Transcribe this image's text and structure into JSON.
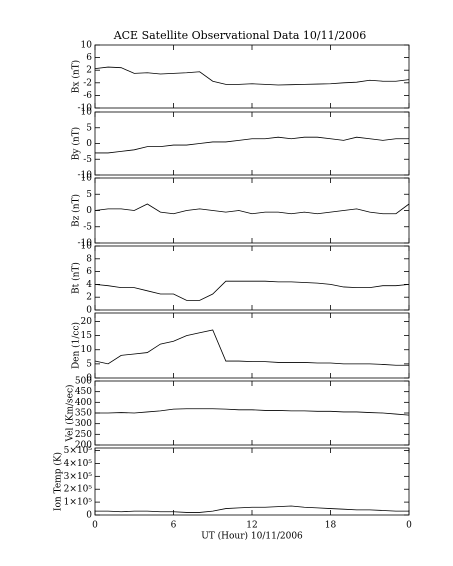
{
  "chart_data": [
    {
      "type": "line",
      "title": "ACE Satellite Observational Data   10/11/2006",
      "ylabel": "Bx (nT)",
      "x": [
        0,
        1,
        2,
        3,
        4,
        5,
        6,
        7,
        8,
        9,
        10,
        11,
        12,
        13,
        14,
        15,
        16,
        17,
        18,
        19,
        20,
        21,
        22,
        23,
        24
      ],
      "series": [
        {
          "color": "#000000",
          "values": [
            2.5,
            3,
            2.8,
            1,
            1.2,
            0.8,
            1,
            1.2,
            1.5,
            -1.5,
            -2.5,
            -2.5,
            -2.3,
            -2.5,
            -2.7,
            -2.6,
            -2.5,
            -2.4,
            -2.3,
            -2,
            -1.8,
            -1.2,
            -1.5,
            -1.5,
            -1
          ]
        }
      ],
      "xlim": [
        0,
        24
      ],
      "ylim": [
        -10,
        10
      ],
      "yticks": [
        -10,
        -6,
        -2,
        2,
        6,
        10
      ]
    },
    {
      "type": "line",
      "ylabel": "By (nT)",
      "x": [
        0,
        1,
        2,
        3,
        4,
        5,
        6,
        7,
        8,
        9,
        10,
        11,
        12,
        13,
        14,
        15,
        16,
        17,
        18,
        19,
        20,
        21,
        22,
        23,
        24
      ],
      "series": [
        {
          "color": "#000000",
          "values": [
            -3,
            -3,
            -2.5,
            -2,
            -1,
            -1,
            -0.5,
            -0.5,
            0,
            0.5,
            0.5,
            1,
            1.5,
            1.5,
            2,
            1.5,
            2,
            2,
            1.5,
            1,
            2,
            1.5,
            1,
            1.5,
            1.5
          ]
        }
      ],
      "xlim": [
        0,
        24
      ],
      "ylim": [
        -10,
        10
      ],
      "yticks": [
        -10,
        -5,
        0,
        5,
        10
      ]
    },
    {
      "type": "line",
      "ylabel": "Bz (nT)",
      "x": [
        0,
        1,
        2,
        3,
        4,
        5,
        6,
        7,
        8,
        9,
        10,
        11,
        12,
        13,
        14,
        15,
        16,
        17,
        18,
        19,
        20,
        21,
        22,
        23,
        24
      ],
      "series": [
        {
          "color": "#000000",
          "values": [
            0,
            0.5,
            0.5,
            0,
            2,
            -0.5,
            -1,
            0,
            0.5,
            0,
            -0.5,
            0,
            -1,
            -0.5,
            -0.5,
            -1,
            -0.5,
            -1,
            -0.5,
            0,
            0.5,
            -0.5,
            -1,
            -1,
            2
          ]
        }
      ],
      "xlim": [
        0,
        24
      ],
      "ylim": [
        -10,
        10
      ],
      "yticks": [
        -10,
        -5,
        0,
        5,
        10
      ]
    },
    {
      "type": "line",
      "ylabel": "Bt (nT)",
      "x": [
        0,
        1,
        2,
        3,
        4,
        5,
        6,
        7,
        8,
        9,
        10,
        11,
        12,
        13,
        14,
        15,
        16,
        17,
        18,
        19,
        20,
        21,
        22,
        23,
        24
      ],
      "series": [
        {
          "color": "#000000",
          "values": [
            4,
            3.8,
            3.5,
            3.5,
            3,
            2.5,
            2.5,
            1.5,
            1.5,
            2.5,
            4.5,
            4.5,
            4.5,
            4.5,
            4.4,
            4.4,
            4.3,
            4.2,
            4,
            3.6,
            3.5,
            3.5,
            3.8,
            3.8,
            4
          ]
        }
      ],
      "xlim": [
        0,
        24
      ],
      "ylim": [
        0,
        10
      ],
      "yticks": [
        0,
        2,
        4,
        6,
        8,
        10
      ]
    },
    {
      "type": "line",
      "ylabel": "Den (1/cc)",
      "x": [
        0,
        1,
        2,
        3,
        4,
        5,
        6,
        7,
        8,
        9,
        10,
        11,
        12,
        13,
        14,
        15,
        16,
        17,
        18,
        19,
        20,
        21,
        22,
        23,
        24
      ],
      "series": [
        {
          "color": "#000000",
          "values": [
            6,
            5,
            8,
            8.5,
            9,
            12,
            13,
            15,
            16,
            17,
            6,
            6,
            5.8,
            5.8,
            5.5,
            5.5,
            5.5,
            5.3,
            5.3,
            5,
            5,
            5,
            4.8,
            4.5,
            4.5
          ]
        }
      ],
      "xlim": [
        0,
        24
      ],
      "ylim": [
        0,
        23
      ],
      "yticks": [
        0,
        5,
        10,
        15,
        20
      ]
    },
    {
      "type": "line",
      "ylabel": "Vel (Km/sec)",
      "x": [
        0,
        1,
        2,
        3,
        4,
        5,
        6,
        7,
        8,
        9,
        10,
        11,
        12,
        13,
        14,
        15,
        16,
        17,
        18,
        19,
        20,
        21,
        22,
        23,
        24
      ],
      "series": [
        {
          "color": "#000000",
          "values": [
            350,
            350,
            352,
            350,
            355,
            360,
            368,
            370,
            370,
            370,
            368,
            365,
            365,
            362,
            362,
            360,
            360,
            358,
            358,
            355,
            355,
            352,
            350,
            345,
            340
          ]
        }
      ],
      "xlim": [
        0,
        24
      ],
      "ylim": [
        200,
        500
      ],
      "yticks": [
        200,
        250,
        300,
        350,
        400,
        450,
        500
      ]
    },
    {
      "type": "line",
      "ylabel": "Ion Temp (K)",
      "xlabel": "UT (Hour)  10/11/2006",
      "x": [
        0,
        1,
        2,
        3,
        4,
        5,
        6,
        7,
        8,
        9,
        10,
        11,
        12,
        13,
        14,
        15,
        16,
        17,
        18,
        19,
        20,
        21,
        22,
        23,
        24
      ],
      "series": [
        {
          "color": "#000000",
          "values": [
            30000,
            30000,
            25000,
            30000,
            30000,
            25000,
            25000,
            20000,
            20000,
            30000,
            50000,
            55000,
            60000,
            60000,
            65000,
            70000,
            60000,
            55000,
            50000,
            45000,
            40000,
            40000,
            35000,
            30000,
            30000
          ]
        }
      ],
      "xlim": [
        0,
        24
      ],
      "ylim": [
        0,
        520000
      ],
      "xticks": [
        0,
        6,
        12,
        18,
        {
          "value": 24,
          "label": "0"
        }
      ],
      "yticks": [
        0,
        {
          "value": 100000,
          "label": "1×10⁵"
        },
        {
          "value": 200000,
          "label": "2×10⁵"
        },
        {
          "value": 300000,
          "label": "3×10⁵"
        },
        {
          "value": 400000,
          "label": "4×10⁵"
        },
        {
          "value": 500000,
          "label": "5×10⁵"
        }
      ]
    }
  ]
}
